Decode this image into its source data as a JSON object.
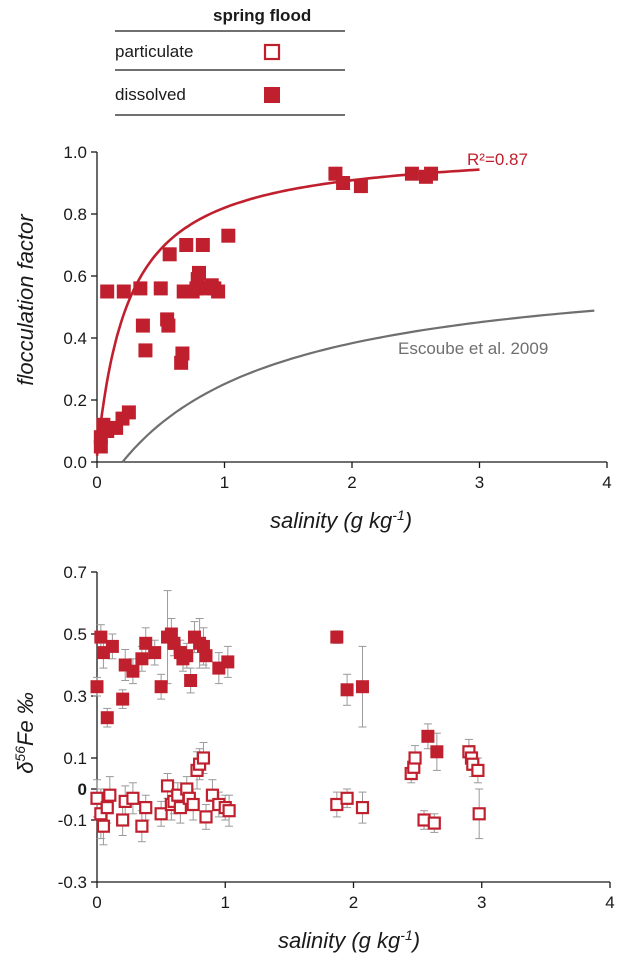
{
  "colors": {
    "red": "#c0202e",
    "gray": "#6f6f6f",
    "errorbar": "#9a9a9a",
    "axis": "#1a1a1a"
  },
  "legend": {
    "title": "spring flood",
    "items": [
      {
        "label": "particulate",
        "marker": "open-square"
      },
      {
        "label": "dissolved",
        "marker": "filled-square"
      }
    ]
  },
  "chart_data": [
    {
      "type": "scatter",
      "xlabel": "salinity (g kg-1)",
      "ylabel": "flocculation factor",
      "xlim": [
        0,
        4
      ],
      "ylim": [
        0,
        1.0
      ],
      "xticks": [
        "0",
        "1",
        "2",
        "3",
        "4"
      ],
      "yticks": [
        "0.0",
        "0.2",
        "0.4",
        "0.6",
        "0.8",
        "1.0"
      ],
      "series": [
        {
          "name": "dissolved",
          "marker": "filled-square",
          "x": [
            0.03,
            0.05,
            0.03,
            0.08,
            0.15,
            0.2,
            0.25,
            0.08,
            0.21,
            0.34,
            0.36,
            0.38,
            0.5,
            0.55,
            0.56,
            0.57,
            0.66,
            0.67,
            0.68,
            0.7,
            0.75,
            0.78,
            0.79,
            0.8,
            0.83,
            0.85,
            0.9,
            0.92,
            0.95,
            1.03,
            1.87,
            1.93,
            2.07,
            2.47,
            2.58,
            2.62
          ],
          "y": [
            0.08,
            0.12,
            0.05,
            0.1,
            0.11,
            0.14,
            0.16,
            0.55,
            0.55,
            0.56,
            0.44,
            0.36,
            0.56,
            0.46,
            0.44,
            0.67,
            0.32,
            0.35,
            0.55,
            0.7,
            0.55,
            0.56,
            0.59,
            0.61,
            0.7,
            0.56,
            0.57,
            0.56,
            0.55,
            0.73,
            0.93,
            0.9,
            0.89,
            0.93,
            0.92,
            0.93
          ]
        }
      ],
      "curves": [
        {
          "name": "fit",
          "label": "R²=0.87",
          "x_start": 0.0,
          "x_end": 3.0
        },
        {
          "name": "escoube",
          "label": "Escoube et al. 2009",
          "x_start": 0.2,
          "x_end": 3.9
        }
      ]
    },
    {
      "type": "scatter",
      "xlabel": "salinity (g kg-1)",
      "ylabel": "δ56Fe ‰",
      "xlim": [
        0,
        4
      ],
      "ylim": [
        -0.3,
        0.7
      ],
      "xticks": [
        "0",
        "1",
        "2",
        "3",
        "4"
      ],
      "yticks": [
        "0.7",
        "0.5",
        "0.3",
        "0.1",
        "0",
        "-0.1",
        "-0.3"
      ],
      "series": [
        {
          "name": "dissolved",
          "marker": "filled-square",
          "x": [
            0.0,
            0.03,
            0.05,
            0.08,
            0.12,
            0.2,
            0.22,
            0.28,
            0.35,
            0.38,
            0.45,
            0.5,
            0.55,
            0.58,
            0.6,
            0.65,
            0.67,
            0.7,
            0.73,
            0.76,
            0.8,
            0.83,
            0.85,
            0.95,
            1.02,
            1.87,
            1.95,
            2.07,
            2.58,
            2.65
          ],
          "y": [
            0.33,
            0.49,
            0.44,
            0.23,
            0.46,
            0.29,
            0.4,
            0.38,
            0.42,
            0.47,
            0.44,
            0.33,
            0.49,
            0.5,
            0.47,
            0.44,
            0.42,
            0.43,
            0.35,
            0.49,
            0.47,
            0.46,
            0.43,
            0.39,
            0.41,
            0.49,
            0.32,
            0.33,
            0.17,
            0.12
          ],
          "err": [
            0.03,
            0.04,
            0.05,
            0.03,
            0.04,
            0.03,
            0.05,
            0.04,
            0.04,
            0.05,
            0.04,
            0.04,
            0.15,
            0.05,
            0.04,
            0.04,
            0.04,
            0.04,
            0.04,
            0.05,
            0.08,
            0.06,
            0.04,
            0.05,
            0.05,
            0.02,
            0.05,
            0.13,
            0.04,
            0.06
          ]
        },
        {
          "name": "particulate",
          "marker": "open-square",
          "x": [
            0.0,
            0.03,
            0.05,
            0.08,
            0.1,
            0.2,
            0.22,
            0.28,
            0.35,
            0.38,
            0.5,
            0.55,
            0.58,
            0.6,
            0.63,
            0.65,
            0.7,
            0.72,
            0.75,
            0.78,
            0.8,
            0.83,
            0.85,
            0.9,
            0.95,
            1.0,
            1.03,
            1.87,
            1.95,
            2.07,
            2.45,
            2.47,
            2.48,
            2.55,
            2.63,
            2.9,
            2.92,
            2.93,
            2.97,
            2.98
          ],
          "y": [
            -0.03,
            -0.08,
            -0.12,
            -0.06,
            -0.02,
            -0.1,
            -0.04,
            -0.03,
            -0.12,
            -0.06,
            -0.08,
            0.01,
            -0.05,
            -0.04,
            -0.02,
            -0.06,
            0.0,
            -0.03,
            -0.05,
            0.06,
            0.08,
            0.1,
            -0.09,
            -0.02,
            -0.05,
            -0.06,
            -0.07,
            -0.05,
            -0.03,
            -0.06,
            0.05,
            0.07,
            0.1,
            -0.1,
            -0.11,
            0.12,
            0.1,
            0.08,
            0.06,
            -0.08
          ],
          "err": [
            0.06,
            0.08,
            0.06,
            0.05,
            0.06,
            0.05,
            0.05,
            0.05,
            0.05,
            0.04,
            0.04,
            0.04,
            0.05,
            0.04,
            0.04,
            0.05,
            0.04,
            0.04,
            0.05,
            0.06,
            0.05,
            0.05,
            0.04,
            0.05,
            0.04,
            0.04,
            0.05,
            0.04,
            0.03,
            0.05,
            0.03,
            0.04,
            0.04,
            0.03,
            0.03,
            0.04,
            0.04,
            0.04,
            0.04,
            0.08
          ]
        }
      ]
    }
  ]
}
